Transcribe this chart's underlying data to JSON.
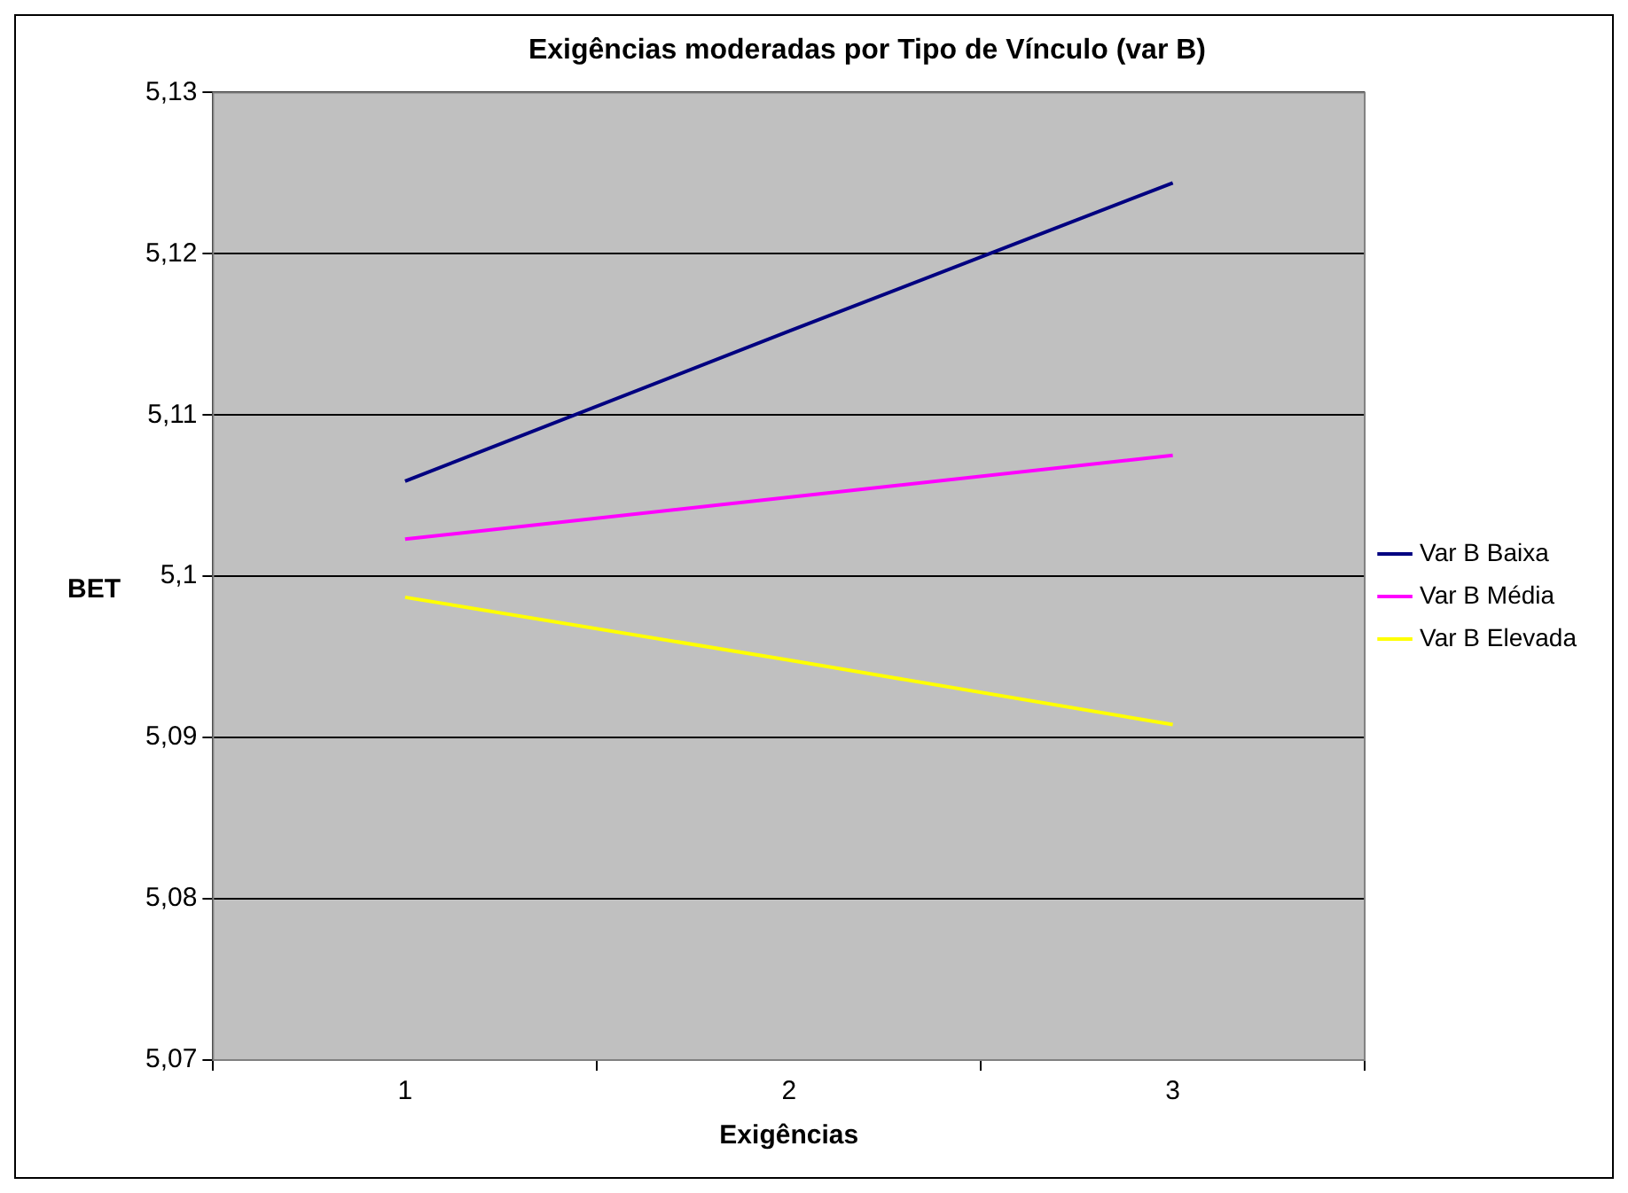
{
  "chart_data": {
    "type": "line",
    "title": "Exigências moderadas por Tipo de Vínculo (var B)",
    "xlabel": "Exigências",
    "ylabel": "BET",
    "categories": [
      "1",
      "2",
      "3"
    ],
    "series": [
      {
        "name": "Var B Baixa",
        "color": "#000080",
        "values": [
          5.1059,
          5.1152,
          5.1244
        ]
      },
      {
        "name": "Var B Média",
        "color": "#ff00ff",
        "values": [
          5.1023,
          5.1049,
          5.1075
        ]
      },
      {
        "name": "Var B Elevada",
        "color": "#ffff00",
        "values": [
          5.0987,
          5.0948,
          5.0908
        ]
      }
    ],
    "ylim": [
      5.07,
      5.13
    ],
    "yticks": [
      {
        "value": 5.07,
        "label": "5,07"
      },
      {
        "value": 5.08,
        "label": "5,08"
      },
      {
        "value": 5.09,
        "label": "5,09"
      },
      {
        "value": 5.1,
        "label": "5,1"
      },
      {
        "value": 5.11,
        "label": "5,11"
      },
      {
        "value": 5.12,
        "label": "5,12"
      },
      {
        "value": 5.13,
        "label": "5,13"
      }
    ],
    "grid": "y",
    "legend": "right",
    "marker": "none",
    "line_style": "solid"
  }
}
